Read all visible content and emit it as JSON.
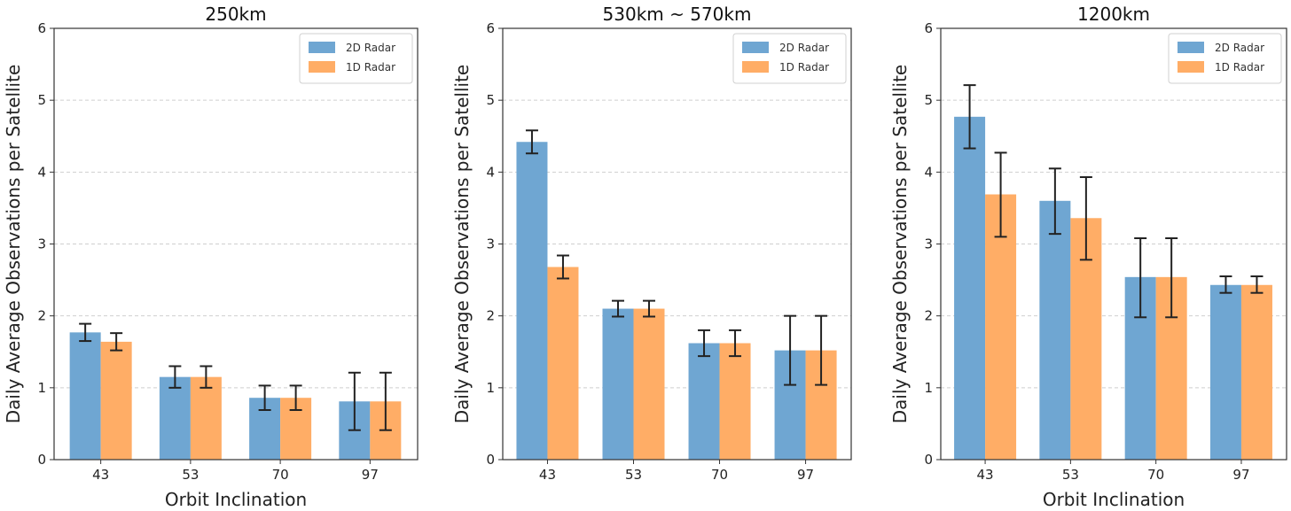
{
  "chart_data": [
    {
      "type": "bar",
      "title": "250km",
      "xlabel": "Orbit Inclination",
      "ylabel": "Daily Average Observations per Satellite",
      "categories": [
        "43",
        "53",
        "70",
        "97"
      ],
      "ylim": [
        0,
        6
      ],
      "yticks": [
        "0",
        "1",
        "2",
        "3",
        "4",
        "5",
        "6"
      ],
      "grid": "horizontal dashed",
      "legend": "top-right",
      "series": [
        {
          "name": "2D Radar",
          "color": "#6fa6d2",
          "values": [
            1.77,
            1.15,
            0.86,
            0.81
          ],
          "err_low": [
            1.65,
            1.0,
            0.69,
            0.41
          ],
          "err_high": [
            1.89,
            1.3,
            1.03,
            1.21
          ]
        },
        {
          "name": "1D Radar",
          "color": "#ffad66",
          "values": [
            1.64,
            1.15,
            0.86,
            0.81
          ],
          "err_low": [
            1.52,
            1.0,
            0.69,
            0.41
          ],
          "err_high": [
            1.76,
            1.3,
            1.03,
            1.21
          ]
        }
      ]
    },
    {
      "type": "bar",
      "title": "530km ~ 570km",
      "xlabel": "",
      "ylabel": "Daily Average Observations per Satellite",
      "categories": [
        "43",
        "53",
        "70",
        "97"
      ],
      "ylim": [
        0,
        6
      ],
      "yticks": [
        "0",
        "1",
        "2",
        "3",
        "4",
        "5",
        "6"
      ],
      "grid": "horizontal dashed",
      "legend": "top-right",
      "series": [
        {
          "name": "2D Radar",
          "color": "#6fa6d2",
          "values": [
            4.42,
            2.1,
            1.62,
            1.52
          ],
          "err_low": [
            4.26,
            1.99,
            1.44,
            1.04
          ],
          "err_high": [
            4.58,
            2.21,
            1.8,
            2.0
          ]
        },
        {
          "name": "1D Radar",
          "color": "#ffad66",
          "values": [
            2.68,
            2.1,
            1.62,
            1.52
          ],
          "err_low": [
            2.52,
            1.99,
            1.44,
            1.04
          ],
          "err_high": [
            2.84,
            2.21,
            1.8,
            2.0
          ]
        }
      ]
    },
    {
      "type": "bar",
      "title": "1200km",
      "xlabel": "Orbit Inclination",
      "ylabel": "Daily Average Observations per Satellite",
      "categories": [
        "43",
        "53",
        "70",
        "97"
      ],
      "ylim": [
        0,
        6
      ],
      "yticks": [
        "0",
        "1",
        "2",
        "3",
        "4",
        "5",
        "6"
      ],
      "grid": "horizontal dashed",
      "legend": "top-right",
      "series": [
        {
          "name": "2D Radar",
          "color": "#6fa6d2",
          "values": [
            4.77,
            3.6,
            2.54,
            2.43
          ],
          "err_low": [
            4.33,
            3.14,
            1.98,
            2.32
          ],
          "err_high": [
            5.21,
            4.05,
            3.08,
            2.55
          ]
        },
        {
          "name": "1D Radar",
          "color": "#ffad66",
          "values": [
            3.69,
            3.36,
            2.54,
            2.43
          ],
          "err_low": [
            3.1,
            2.78,
            1.98,
            2.32
          ],
          "err_high": [
            4.27,
            3.93,
            3.08,
            2.55
          ]
        }
      ]
    }
  ]
}
